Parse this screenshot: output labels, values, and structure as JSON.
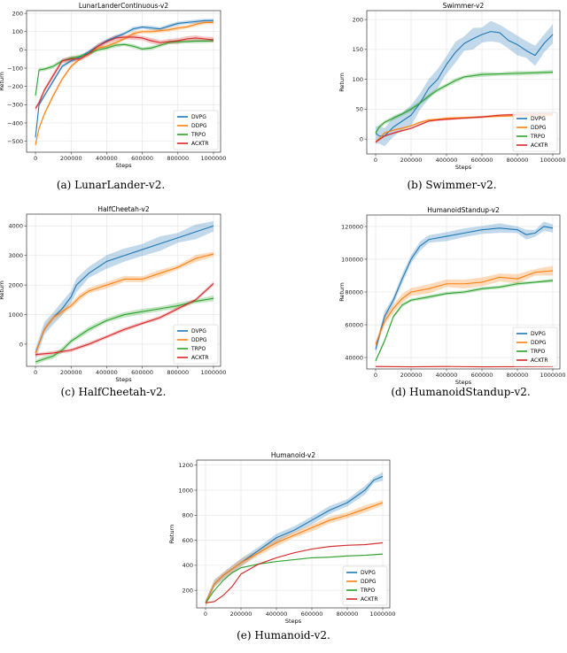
{
  "colors": {
    "DVPG": "#1f77b4",
    "DDPG": "#ff7f0e",
    "TRPO": "#2ca02c",
    "ACKTR": "#d62728"
  },
  "chart_data": [
    {
      "type": "line",
      "title": "LunarLanderContinuous-v2",
      "caption": "(a)  LunarLander-v2.",
      "xlabel": "Steps",
      "ylabel": "Return",
      "xlim": [
        -50000,
        1040000
      ],
      "ylim": [
        -560,
        215
      ],
      "xticks": [
        0,
        200000,
        400000,
        600000,
        800000,
        1000000
      ],
      "yticks": [
        -500,
        -400,
        -300,
        -200,
        -100,
        0,
        100,
        200
      ],
      "grid": true,
      "legend": "lower-right",
      "series": [
        {
          "name": "DVPG",
          "band": 12,
          "x": [
            0,
            20000,
            50000,
            100000,
            150000,
            200000,
            250000,
            300000,
            350000,
            400000,
            450000,
            500000,
            550000,
            600000,
            650000,
            700000,
            750000,
            800000,
            850000,
            900000,
            950000,
            1000000
          ],
          "y": [
            -480,
            -300,
            -250,
            -170,
            -90,
            -60,
            -40,
            -10,
            20,
            50,
            70,
            90,
            115,
            125,
            120,
            115,
            130,
            145,
            150,
            155,
            160,
            160
          ]
        },
        {
          "name": "DDPG",
          "band": 12,
          "x": [
            0,
            20000,
            50000,
            100000,
            150000,
            200000,
            250000,
            300000,
            350000,
            400000,
            450000,
            500000,
            550000,
            600000,
            650000,
            700000,
            750000,
            800000,
            850000,
            900000,
            950000,
            1000000
          ],
          "y": [
            -520,
            -430,
            -350,
            -250,
            -160,
            -90,
            -50,
            -20,
            10,
            20,
            40,
            60,
            90,
            100,
            100,
            105,
            110,
            120,
            125,
            140,
            150,
            150
          ]
        },
        {
          "name": "TRPO",
          "band": 12,
          "x": [
            0,
            20000,
            50000,
            100000,
            150000,
            200000,
            250000,
            300000,
            350000,
            400000,
            450000,
            500000,
            550000,
            600000,
            650000,
            700000,
            750000,
            800000,
            850000,
            900000,
            950000,
            1000000
          ],
          "y": [
            -250,
            -110,
            -105,
            -90,
            -60,
            -45,
            -35,
            -20,
            0,
            10,
            25,
            30,
            20,
            5,
            10,
            25,
            40,
            45,
            45,
            48,
            48,
            50
          ]
        },
        {
          "name": "ACKTR",
          "band": 16,
          "x": [
            0,
            20000,
            50000,
            100000,
            150000,
            200000,
            250000,
            300000,
            350000,
            400000,
            450000,
            500000,
            550000,
            600000,
            650000,
            700000,
            750000,
            800000,
            850000,
            900000,
            950000,
            1000000
          ],
          "y": [
            -320,
            -290,
            -220,
            -140,
            -60,
            -50,
            -50,
            -20,
            20,
            45,
            65,
            70,
            70,
            65,
            50,
            40,
            45,
            50,
            60,
            65,
            60,
            55
          ]
        }
      ]
    },
    {
      "type": "line",
      "title": "Swimmer-v2",
      "caption": "(b)  Swimmer-v2.",
      "xlabel": "Steps",
      "ylabel": "Return",
      "xlim": [
        -50000,
        1040000
      ],
      "ylim": [
        -25,
        215
      ],
      "xticks": [
        0,
        200000,
        400000,
        600000,
        800000,
        1000000
      ],
      "yticks": [
        0,
        50,
        100,
        150,
        200
      ],
      "grid": true,
      "legend": "lower-right",
      "series": [
        {
          "name": "DVPG",
          "band": 18,
          "x": [
            0,
            20000,
            50000,
            100000,
            150000,
            200000,
            250000,
            300000,
            350000,
            400000,
            450000,
            500000,
            550000,
            600000,
            650000,
            700000,
            750000,
            800000,
            850000,
            900000,
            950000,
            1000000
          ],
          "y": [
            10,
            5,
            5,
            20,
            30,
            40,
            60,
            85,
            100,
            125,
            145,
            160,
            168,
            175,
            180,
            178,
            165,
            158,
            148,
            140,
            160,
            175
          ]
        },
        {
          "name": "DDPG",
          "band": 2,
          "x": [
            0,
            50000,
            100000,
            150000,
            200000,
            250000,
            300000,
            350000,
            400000,
            500000,
            600000,
            700000,
            800000,
            900000,
            1000000
          ],
          "y": [
            -5,
            10,
            15,
            18,
            22,
            28,
            32,
            33,
            35,
            36,
            37,
            38,
            39,
            39,
            40
          ]
        },
        {
          "name": "TRPO",
          "band": 4,
          "x": [
            0,
            20000,
            50000,
            100000,
            150000,
            200000,
            250000,
            300000,
            350000,
            400000,
            450000,
            500000,
            600000,
            700000,
            800000,
            900000,
            1000000
          ],
          "y": [
            10,
            20,
            28,
            35,
            42,
            50,
            60,
            72,
            82,
            90,
            98,
            104,
            108,
            109,
            110,
            111,
            112
          ]
        },
        {
          "name": "ACKTR",
          "band": 2,
          "x": [
            0,
            50000,
            100000,
            150000,
            200000,
            250000,
            300000,
            350000,
            400000,
            500000,
            600000,
            700000,
            800000,
            900000,
            1000000
          ],
          "y": [
            -5,
            5,
            10,
            14,
            18,
            24,
            30,
            32,
            33,
            35,
            37,
            40,
            41,
            42,
            42
          ]
        }
      ]
    },
    {
      "type": "line",
      "title": "HalfCheetah-v2",
      "caption": "(c)  HalfCheetah-v2.",
      "xlabel": "Steps",
      "ylabel": "Return",
      "xlim": [
        -50000,
        1040000
      ],
      "ylim": [
        -750,
        4400
      ],
      "xticks": [
        0,
        200000,
        400000,
        600000,
        800000,
        1000000
      ],
      "yticks": [
        0,
        1000,
        2000,
        3000,
        4000
      ],
      "grid": true,
      "legend": "lower-right",
      "series": [
        {
          "name": "DVPG",
          "band": 250,
          "x": [
            0,
            50000,
            100000,
            150000,
            200000,
            230000,
            300000,
            400000,
            500000,
            600000,
            700000,
            800000,
            900000,
            1000000
          ],
          "y": [
            -300,
            500,
            900,
            1200,
            1600,
            2000,
            2400,
            2800,
            3000,
            3200,
            3400,
            3600,
            3800,
            4000
          ]
        },
        {
          "name": "DDPG",
          "band": 120,
          "x": [
            0,
            50000,
            100000,
            150000,
            200000,
            250000,
            300000,
            400000,
            500000,
            600000,
            700000,
            800000,
            900000,
            1000000
          ],
          "y": [
            -300,
            500,
            900,
            1100,
            1300,
            1600,
            1800,
            2000,
            2200,
            2200,
            2400,
            2600,
            2900,
            3050
          ]
        },
        {
          "name": "TRPO",
          "band": 100,
          "x": [
            0,
            50000,
            100000,
            150000,
            200000,
            300000,
            400000,
            500000,
            600000,
            700000,
            800000,
            900000,
            1000000
          ],
          "y": [
            -600,
            -500,
            -400,
            -200,
            100,
            500,
            800,
            1000,
            1100,
            1200,
            1300,
            1450,
            1550
          ]
        },
        {
          "name": "ACKTR",
          "band": 70,
          "x": [
            0,
            100000,
            200000,
            300000,
            400000,
            500000,
            600000,
            700000,
            800000,
            900000,
            1000000
          ],
          "y": [
            -350,
            -300,
            -200,
            0,
            250,
            500,
            700,
            900,
            1200,
            1500,
            2050
          ]
        }
      ]
    },
    {
      "type": "line",
      "title": "HumanoidStandup-v2",
      "caption": "(d)  HumanoidStandup-v2.",
      "xlabel": "Steps",
      "ylabel": "Return",
      "xlim": [
        -50000,
        1040000
      ],
      "ylim": [
        33000,
        127000
      ],
      "xticks": [
        0,
        200000,
        400000,
        600000,
        800000,
        1000000
      ],
      "yticks": [
        40000,
        60000,
        80000,
        100000,
        120000
      ],
      "grid": true,
      "legend": "lower-right",
      "series": [
        {
          "name": "DVPG",
          "band": 3000,
          "x": [
            0,
            50000,
            100000,
            150000,
            200000,
            250000,
            300000,
            400000,
            500000,
            600000,
            700000,
            800000,
            850000,
            900000,
            950000,
            1000000
          ],
          "y": [
            45000,
            65000,
            75000,
            88000,
            100000,
            108000,
            112000,
            114000,
            116000,
            118000,
            119000,
            118000,
            115000,
            116000,
            120000,
            119000
          ]
        },
        {
          "name": "DDPG",
          "band": 3000,
          "x": [
            0,
            50000,
            100000,
            150000,
            200000,
            300000,
            400000,
            500000,
            600000,
            700000,
            800000,
            900000,
            1000000
          ],
          "y": [
            48000,
            62000,
            70000,
            76000,
            80000,
            82000,
            85000,
            85000,
            86000,
            89000,
            88000,
            92000,
            93000
          ]
        },
        {
          "name": "TRPO",
          "band": 1200,
          "x": [
            0,
            50000,
            100000,
            150000,
            200000,
            300000,
            400000,
            500000,
            600000,
            700000,
            800000,
            900000,
            1000000
          ],
          "y": [
            38000,
            50000,
            65000,
            72000,
            75000,
            77000,
            79000,
            80000,
            82000,
            83000,
            85000,
            86000,
            87000
          ]
        },
        {
          "name": "ACKTR",
          "band": 300,
          "x": [
            0,
            200000,
            400000,
            600000,
            800000,
            1000000
          ],
          "y": [
            34500,
            34300,
            34500,
            34300,
            34400,
            34500
          ]
        }
      ]
    },
    {
      "type": "line",
      "title": "Humanoid-v2",
      "caption": "(e)  Humanoid-v2.",
      "xlabel": "Steps",
      "ylabel": "Return",
      "xlim": [
        -50000,
        1040000
      ],
      "ylim": [
        60,
        1240
      ],
      "xticks": [
        0,
        200000,
        400000,
        600000,
        800000,
        1000000
      ],
      "yticks": [
        200,
        400,
        600,
        800,
        1000,
        1200
      ],
      "grid": true,
      "legend": "lower-right",
      "series": [
        {
          "name": "DVPG",
          "band": 35,
          "x": [
            0,
            50000,
            100000,
            200000,
            300000,
            400000,
            500000,
            600000,
            700000,
            800000,
            900000,
            950000,
            1000000
          ],
          "y": [
            100,
            250,
            320,
            420,
            520,
            620,
            680,
            760,
            840,
            900,
            1000,
            1080,
            1110
          ]
        },
        {
          "name": "DDPG",
          "band": 30,
          "x": [
            0,
            50000,
            100000,
            200000,
            300000,
            400000,
            500000,
            600000,
            700000,
            800000,
            900000,
            1000000
          ],
          "y": [
            100,
            250,
            320,
            420,
            500,
            580,
            640,
            700,
            760,
            800,
            850,
            900
          ]
        },
        {
          "name": "TRPO",
          "band": 5,
          "x": [
            0,
            50000,
            100000,
            150000,
            200000,
            300000,
            400000,
            500000,
            600000,
            700000,
            800000,
            900000,
            1000000
          ],
          "y": [
            100,
            200,
            280,
            340,
            380,
            410,
            430,
            445,
            460,
            465,
            475,
            480,
            490
          ]
        },
        {
          "name": "ACKTR",
          "band": 5,
          "x": [
            0,
            50000,
            100000,
            150000,
            200000,
            300000,
            400000,
            500000,
            600000,
            700000,
            800000,
            900000,
            1000000
          ],
          "y": [
            100,
            110,
            160,
            230,
            330,
            410,
            460,
            500,
            530,
            550,
            560,
            565,
            580
          ]
        }
      ]
    }
  ]
}
